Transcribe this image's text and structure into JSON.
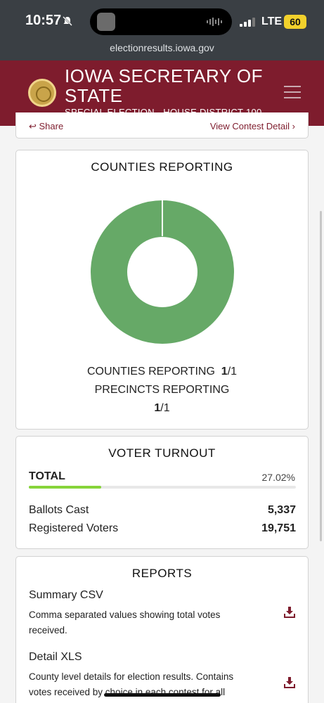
{
  "status_bar": {
    "time": "10:57",
    "network": "LTE",
    "battery": "60"
  },
  "browser": {
    "url": "electionresults.iowa.gov"
  },
  "header": {
    "title": "IOWA SECRETARY OF STATE",
    "subtitle": "SPECIAL ELECTION - HOUSE DISTRICT 100"
  },
  "prev_card": {
    "share_label": "Share",
    "detail_label": "View Contest Detail"
  },
  "counties": {
    "title": "COUNTIES REPORTING",
    "counties_label": "COUNTIES REPORTING",
    "counties_reported": "1",
    "counties_total": "/1",
    "precincts_label": "PRECINCTS REPORTING",
    "precincts_reported": "1",
    "precincts_total": "/1",
    "fraction_reporting": 1.0,
    "accent": "#66a967"
  },
  "turnout": {
    "title": "VOTER TURNOUT",
    "total_label": "TOTAL",
    "percent": "27.02%",
    "percent_value": 0.2702,
    "bar_color": "#86d43a",
    "ballots_label": "Ballots Cast",
    "ballots_value": "5,337",
    "registered_label": "Registered Voters",
    "registered_value": "19,751"
  },
  "reports": {
    "title": "REPORTS",
    "items": [
      {
        "name": "Summary CSV",
        "description": "Comma separated values showing total votes received.",
        "icon": "download-icon"
      },
      {
        "name": "Detail XLS",
        "description": "County level details for election results. Contains votes received by choice in each contest for all",
        "icon": "download-icon"
      }
    ]
  },
  "colors": {
    "brand": "#7e1c2d",
    "accent_green": "#66a967"
  }
}
